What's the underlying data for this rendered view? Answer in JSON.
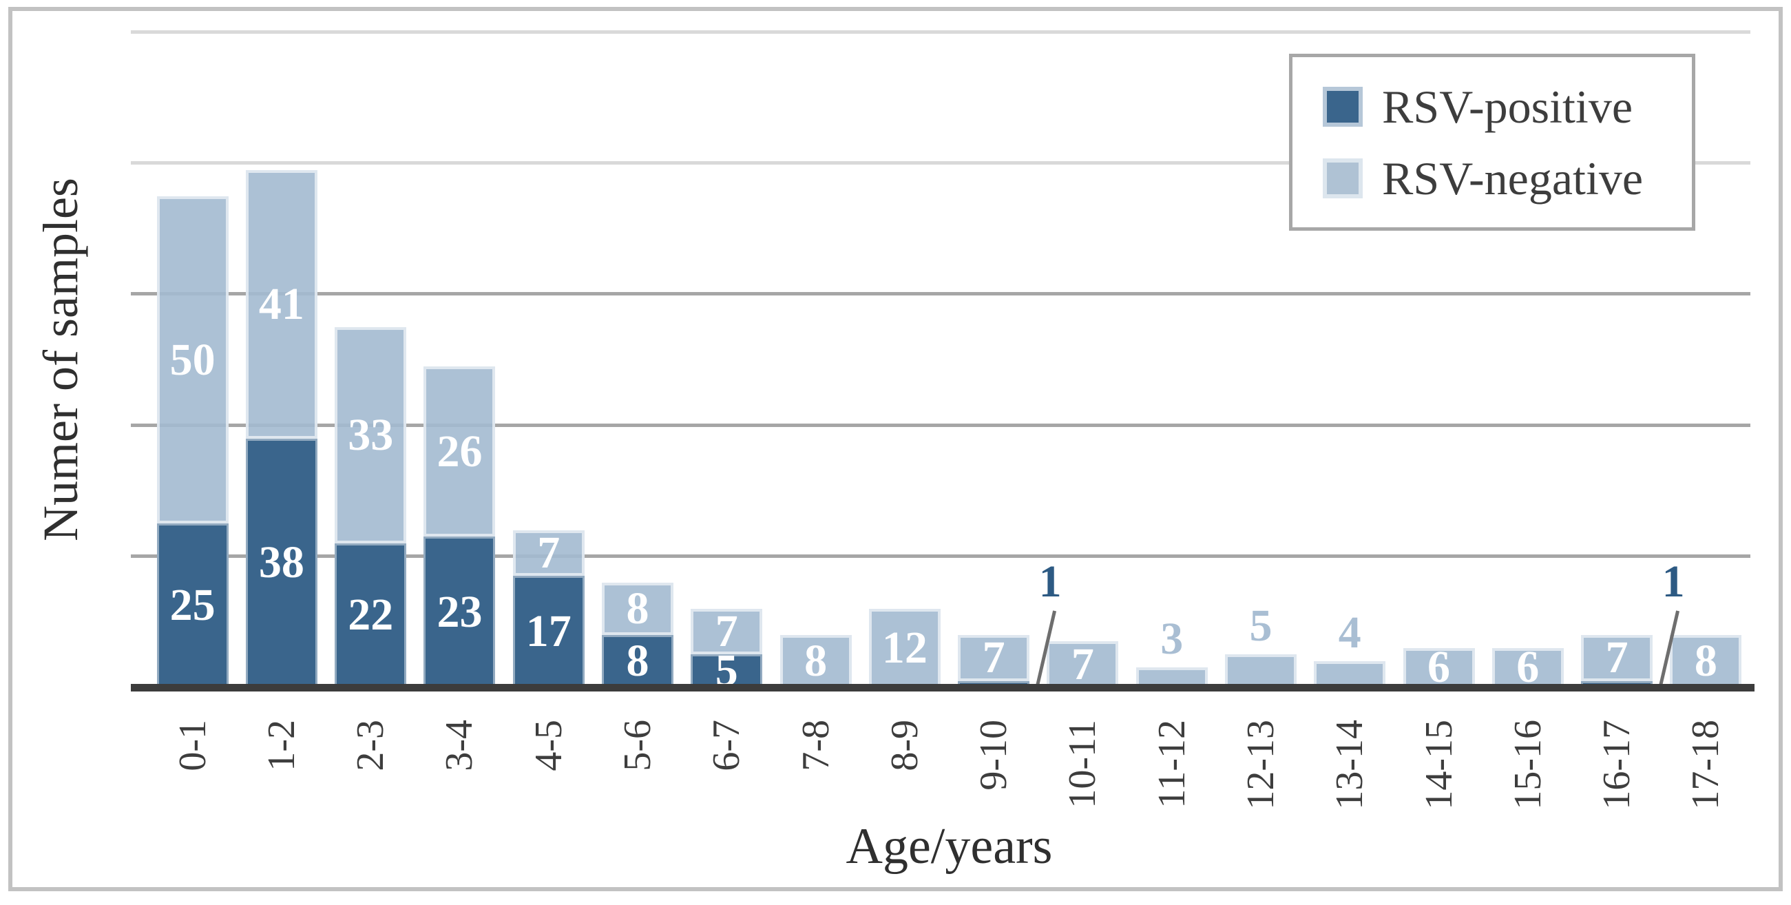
{
  "chart_data": {
    "type": "bar",
    "stacked": true,
    "title": "",
    "xlabel": "Age/years",
    "ylabel": "Numer of samples",
    "categories": [
      "0-1",
      "1-2",
      "2-3",
      "3-4",
      "4-5",
      "5-6",
      "6-7",
      "7-8",
      "8-9",
      "9-10",
      "10-11",
      "11-12",
      "12-13",
      "13-14",
      "14-15",
      "15-16",
      "16-17",
      "17-18"
    ],
    "series": [
      {
        "name": "RSV-positive",
        "color": "#3a658c",
        "values": [
          25,
          38,
          22,
          23,
          17,
          8,
          5,
          0,
          0,
          1,
          0,
          0,
          0,
          0,
          0,
          0,
          1,
          0
        ]
      },
      {
        "name": "RSV-negative",
        "color": "#afc2d4",
        "values": [
          50,
          41,
          33,
          26,
          7,
          8,
          7,
          8,
          12,
          7,
          7,
          3,
          5,
          4,
          6,
          6,
          7,
          8
        ]
      }
    ],
    "ylim": [
      0,
      100
    ],
    "grid_interval": 20,
    "grid": true,
    "y_tick_labels_shown": false,
    "legend_position": "top-right",
    "callouts": [
      {
        "category": "9-10",
        "series": "RSV-positive",
        "value": 1
      },
      {
        "category": "16-17",
        "series": "RSV-positive",
        "value": 1
      }
    ]
  },
  "legend": {
    "items": [
      {
        "label": "RSV-positive",
        "color": "#3a658c"
      },
      {
        "label": "RSV-negative",
        "color": "#afc2d4"
      }
    ]
  },
  "colors": {
    "positive": "#3a658c",
    "negative": "#afc2d4",
    "negative_fill_rgba": "rgba(163,186,208,0.9)",
    "in_bar_text": "#ffffff",
    "above_bar_text": "#a9bed3",
    "callout_text": "#2d5a83",
    "callout_line": "#6e6e6e",
    "gridline": "#a6a6a6",
    "gridline_light": "#d9d9d9",
    "axis_line": "#3c3c3c",
    "axis_text": "#3d3d3d",
    "frame_border": "#c2c2c2",
    "legend_border": "#a7a7a7",
    "swatch_border_positive": "#b6c7d8",
    "swatch_border_negative": "#dde6ee"
  }
}
